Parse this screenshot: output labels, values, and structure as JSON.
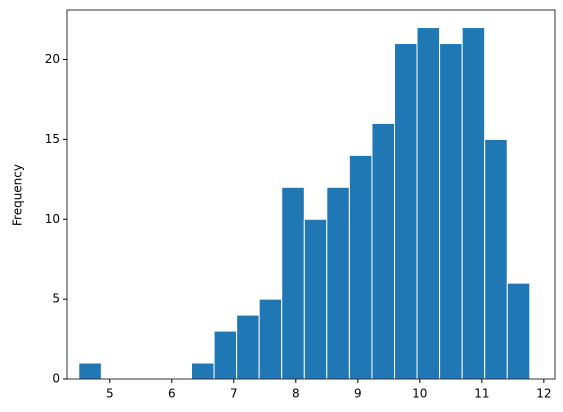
{
  "chart_data": {
    "type": "histogram",
    "y_label": "Frequency",
    "bins": [
      4.5,
      4.864,
      5.227,
      5.591,
      5.955,
      6.318,
      6.682,
      7.046,
      7.409,
      7.773,
      8.137,
      8.5,
      8.864,
      9.228,
      9.592,
      9.955,
      10.319,
      10.683,
      11.046,
      11.41,
      11.774
    ],
    "values": [
      1,
      0,
      0,
      0,
      0,
      1,
      3,
      4,
      5,
      12,
      10,
      12,
      14,
      16,
      21,
      22,
      21,
      22,
      15,
      6
    ],
    "color": "#1f77b4",
    "xlim": [
      4.31,
      12.18
    ],
    "xticks": [
      5,
      6,
      7,
      8,
      9,
      10,
      11,
      12
    ],
    "ylim": [
      0,
      23.1
    ],
    "yticks": [
      0,
      5,
      10,
      15,
      20
    ]
  }
}
